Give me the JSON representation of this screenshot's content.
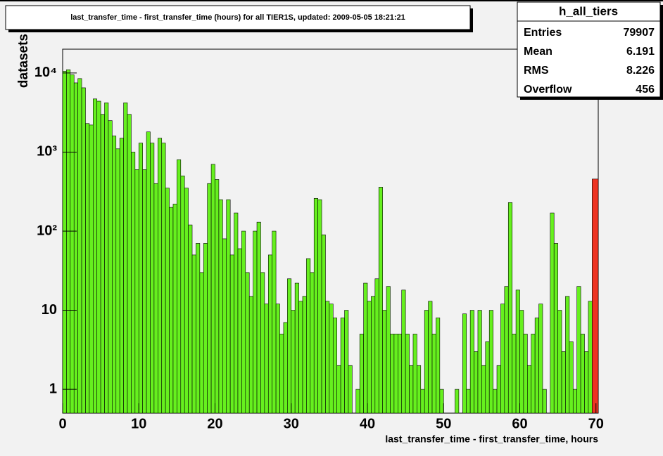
{
  "chart_data": {
    "type": "histogram",
    "title": "last_transfer_time - first_transfer_time (hours) for all TIER1S, updated: 2009-05-05 18:21:21",
    "x_label": "last_transfer_time - first_transfer_time, hours",
    "y_label": "datasets",
    "log_y": true,
    "color": "#66f01e",
    "overflow_color": "#ee3322",
    "xlim": [
      0,
      70.3
    ],
    "ylim": [
      0.5,
      20000
    ],
    "xticks": [
      0,
      10,
      20,
      30,
      40,
      50,
      60,
      70
    ],
    "yticks": [
      1,
      10,
      {
        "value": 100,
        "label": "10²"
      },
      {
        "value": 1000,
        "label": "10³"
      },
      {
        "value": 10000,
        "label": "10⁴"
      }
    ],
    "bins": [
      0,
      0.5,
      1,
      1.5,
      2,
      2.5,
      3,
      3.5,
      4,
      4.5,
      5,
      5.5,
      6,
      6.5,
      7,
      7.5,
      8,
      8.5,
      9,
      9.5,
      10,
      10.5,
      11,
      11.5,
      12,
      12.5,
      13,
      13.5,
      14,
      14.5,
      15,
      15.5,
      16,
      16.5,
      17,
      17.5,
      18,
      18.5,
      19,
      19.5,
      20,
      20.5,
      21,
      21.5,
      22,
      22.5,
      23,
      23.5,
      24,
      24.5,
      25,
      25.5,
      26,
      26.5,
      27,
      27.5,
      28,
      28.5,
      29,
      29.5,
      30,
      30.5,
      31,
      31.5,
      32,
      32.5,
      33,
      33.5,
      34,
      34.5,
      35,
      35.5,
      36,
      36.5,
      37,
      37.5,
      38,
      38.5,
      39,
      39.5,
      40,
      40.5,
      41,
      41.5,
      42,
      42.5,
      43,
      43.5,
      44,
      44.5,
      45,
      45.5,
      46,
      46.5,
      47,
      47.5,
      48,
      48.5,
      49,
      49.5,
      50,
      50.5,
      51,
      51.5,
      52,
      52.5,
      53,
      53.5,
      54,
      54.5,
      55,
      55.5,
      56,
      56.5,
      57,
      57.5,
      58,
      58.5,
      59,
      59.5,
      60,
      60.5,
      61,
      61.5,
      62,
      62.5,
      63,
      63.5,
      64,
      64.5,
      65,
      65.5,
      66,
      66.5,
      67,
      67.5,
      68,
      68.5,
      69,
      69.5
    ],
    "values": [
      10500,
      11000,
      9500,
      7500,
      8500,
      6500,
      2300,
      2200,
      4700,
      4400,
      3000,
      4200,
      2500,
      1600,
      1100,
      1500,
      4200,
      3000,
      1000,
      600,
      1300,
      600,
      1800,
      1300,
      400,
      1500,
      1300,
      350,
      200,
      220,
      800,
      500,
      350,
      120,
      50,
      70,
      30,
      70,
      400,
      700,
      450,
      250,
      80,
      250,
      50,
      170,
      60,
      100,
      30,
      15,
      100,
      130,
      30,
      12,
      50,
      100,
      12,
      5,
      7,
      25,
      10,
      22,
      13,
      15,
      45,
      30,
      260,
      250,
      90,
      13,
      12,
      8,
      2,
      8,
      10,
      2,
      0,
      1,
      5,
      22,
      13,
      15,
      25,
      360,
      10,
      20,
      5,
      5,
      5,
      18,
      5,
      2,
      5,
      2,
      1,
      10,
      13,
      5,
      8,
      1,
      0,
      0,
      0,
      1,
      0,
      9,
      1,
      10,
      3,
      10,
      2,
      4,
      10,
      1,
      2,
      12,
      20,
      230,
      5,
      18,
      10,
      5,
      2,
      5,
      8,
      12,
      1,
      0,
      170,
      70,
      10,
      3,
      15,
      4,
      1,
      20,
      5,
      3,
      13
    ],
    "stats": {
      "name": "h_all_tiers",
      "rows": [
        {
          "label": "Entries",
          "value": 79907
        },
        {
          "label": "Mean",
          "value": 6.191
        },
        {
          "label": "RMS",
          "value": 8.226
        },
        {
          "label": "Overflow",
          "value": 456
        }
      ]
    }
  }
}
